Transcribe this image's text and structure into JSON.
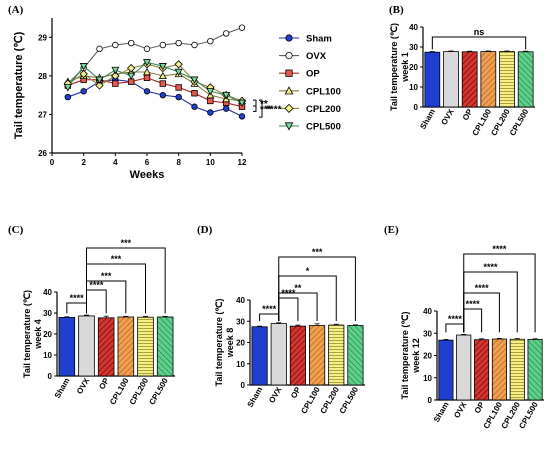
{
  "colors": {
    "sham": "#1f3fd1",
    "ovx": "#d9d9d9",
    "op": "#d9352e",
    "cpl100": "#f0a050",
    "cpl200": "#f5ef8a",
    "cpl500": "#5fd08a"
  },
  "chart_data": [
    {
      "panel": "(A)",
      "type": "line",
      "xlabel": "Weeks",
      "ylabel": "Tail temperature (℃)",
      "xlim": [
        0,
        12
      ],
      "ylim": [
        26,
        29.5
      ],
      "x_ticks": [
        "0",
        "2",
        "4",
        "6",
        "8",
        "10",
        "12"
      ],
      "y_ticks": [
        "26",
        "27",
        "28",
        "29"
      ],
      "x": [
        1,
        2,
        3,
        4,
        5,
        6,
        7,
        8,
        9,
        10,
        11,
        12
      ],
      "series": [
        {
          "name": "Sham",
          "marker": "circle-filled",
          "values": [
            27.45,
            27.6,
            27.85,
            27.9,
            27.85,
            27.6,
            27.5,
            27.45,
            27.2,
            27.05,
            27.15,
            26.95
          ]
        },
        {
          "name": "OVX",
          "marker": "circle-open",
          "values": [
            27.8,
            28.2,
            28.7,
            28.8,
            28.85,
            28.7,
            28.8,
            28.85,
            28.8,
            28.9,
            29.1,
            29.25
          ]
        },
        {
          "name": "OP",
          "marker": "square",
          "values": [
            27.75,
            27.9,
            27.9,
            27.8,
            27.85,
            27.95,
            27.8,
            27.7,
            27.55,
            27.35,
            27.3,
            27.2
          ]
        },
        {
          "name": "CPL100",
          "marker": "triangle-up",
          "values": [
            27.85,
            28.0,
            27.95,
            28.05,
            28.1,
            28.1,
            28.0,
            28.05,
            27.8,
            27.5,
            27.4,
            27.35
          ]
        },
        {
          "name": "CPL200",
          "marker": "diamond",
          "values": [
            27.8,
            28.05,
            27.75,
            28.0,
            28.2,
            28.3,
            28.2,
            28.3,
            27.85,
            27.7,
            27.5,
            27.35
          ]
        },
        {
          "name": "CPL500",
          "marker": "triangle-down",
          "values": [
            27.7,
            28.25,
            27.9,
            28.15,
            28.0,
            28.35,
            28.25,
            28.1,
            27.9,
            27.6,
            27.5,
            27.3
          ]
        }
      ],
      "significance": [
        "**",
        "***",
        "****"
      ]
    },
    {
      "panel": "(B)",
      "type": "bar",
      "ylabel": "Tail temperature (℃)",
      "ylabel2": "week 1",
      "ylim": [
        0,
        40
      ],
      "y_ticks": [
        "0",
        "10",
        "20",
        "30",
        "40"
      ],
      "categories": [
        "Sham",
        "OVX",
        "OP",
        "CPL100",
        "CPL200",
        "CPL500"
      ],
      "values": [
        27.4,
        27.7,
        27.6,
        27.7,
        27.7,
        27.6
      ],
      "errors": [
        0.3,
        0.3,
        0.3,
        0.3,
        0.3,
        0.3
      ],
      "brackets": [
        {
          "from": 0,
          "to": 5,
          "label": "ns"
        }
      ]
    },
    {
      "panel": "(C)",
      "type": "bar",
      "ylabel": "Tail temperature (℃)",
      "ylabel2": "week 4",
      "ylim": [
        0,
        40
      ],
      "y_ticks": [
        "0",
        "10",
        "20",
        "30",
        "40"
      ],
      "categories": [
        "Sham",
        "OVX",
        "OP",
        "CPL100",
        "CPL200",
        "CPL500"
      ],
      "values": [
        27.9,
        28.6,
        27.7,
        28.1,
        28.0,
        28.1
      ],
      "errors": [
        0.3,
        0.4,
        0.8,
        0.3,
        0.4,
        0.3
      ],
      "brackets": [
        {
          "from": 0,
          "to": 1,
          "label": "****"
        },
        {
          "from": 1,
          "to": 2,
          "label": "****"
        },
        {
          "from": 1,
          "to": 3,
          "label": "***"
        },
        {
          "from": 1,
          "to": 4,
          "label": "***"
        },
        {
          "from": 1,
          "to": 5,
          "label": "***"
        }
      ]
    },
    {
      "panel": "(D)",
      "type": "bar",
      "ylabel": "Tail temperature (℃)",
      "ylabel2": "week 8",
      "ylim": [
        0,
        40
      ],
      "y_ticks": [
        "0",
        "10",
        "20",
        "30",
        "40"
      ],
      "categories": [
        "Sham",
        "OVX",
        "OP",
        "CPL100",
        "CPL200",
        "CPL500"
      ],
      "values": [
        27.4,
        28.9,
        27.7,
        28.0,
        28.2,
        28.0
      ],
      "errors": [
        0.3,
        0.4,
        0.5,
        0.8,
        0.4,
        0.3
      ],
      "brackets": [
        {
          "from": 0,
          "to": 1,
          "label": "****"
        },
        {
          "from": 1,
          "to": 2,
          "label": "****"
        },
        {
          "from": 1,
          "to": 3,
          "label": "**"
        },
        {
          "from": 1,
          "to": 4,
          "label": "*"
        },
        {
          "from": 1,
          "to": 5,
          "label": "***"
        }
      ]
    },
    {
      "panel": "(E)",
      "type": "bar",
      "ylabel": "Tail temperature (℃)",
      "ylabel2": "week 12",
      "ylim": [
        0,
        40
      ],
      "y_ticks": [
        "0",
        "10",
        "20",
        "30",
        "40"
      ],
      "categories": [
        "Sham",
        "OVX",
        "OP",
        "CPL100",
        "CPL200",
        "CPL500"
      ],
      "values": [
        26.9,
        29.2,
        27.1,
        27.4,
        27.3,
        27.2
      ],
      "errors": [
        0.3,
        0.3,
        0.4,
        0.3,
        0.3,
        0.3
      ],
      "brackets": [
        {
          "from": 0,
          "to": 1,
          "label": "****"
        },
        {
          "from": 1,
          "to": 2,
          "label": "****"
        },
        {
          "from": 1,
          "to": 3,
          "label": "****"
        },
        {
          "from": 1,
          "to": 4,
          "label": "****"
        },
        {
          "from": 1,
          "to": 5,
          "label": "****"
        }
      ]
    }
  ]
}
